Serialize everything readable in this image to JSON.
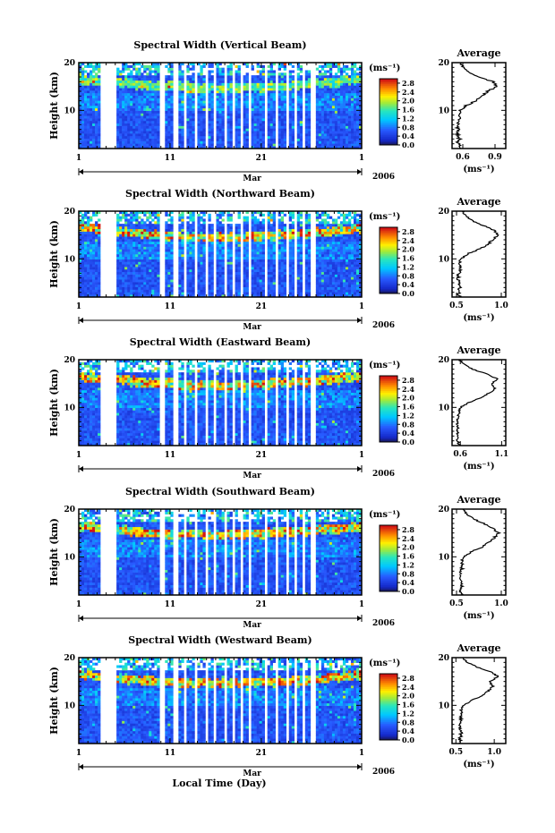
{
  "figure": {
    "xlabel": "Local Time (Day)"
  },
  "chart_data": [
    {
      "type": "heatmap",
      "title": "Spectral Width (Vertical Beam)",
      "ylabel": "Height (km)",
      "y_ticks": [
        "20",
        "10"
      ],
      "x_ticks": [
        "1",
        "11",
        "21",
        "1"
      ],
      "month_label": "Mar",
      "year_label": "2006",
      "ylim": [
        2,
        20
      ],
      "xlim": [
        1,
        32
      ],
      "colorbar": {
        "unit": "(ms⁻¹)",
        "labels": [
          "2.8",
          "2.4",
          "2.0",
          "1.6",
          "1.2",
          "0.8",
          "0.4",
          "0.0"
        ],
        "range": [
          0,
          3.0
        ]
      },
      "average": {
        "title": "Average",
        "xlabel": "(ms⁻¹)",
        "x_ticks": [
          "0.6",
          "0.9"
        ],
        "y_ticks": [
          "20",
          "10"
        ],
        "xlim": [
          0.5,
          1.0
        ],
        "ylim": [
          2,
          20
        ],
        "profile_heights": [
          2,
          3,
          4,
          5,
          6,
          7,
          8,
          9,
          10,
          11,
          12,
          13,
          14,
          15,
          16,
          17,
          18,
          19,
          20
        ],
        "profile_values": [
          0.58,
          0.56,
          0.57,
          0.55,
          0.56,
          0.56,
          0.57,
          0.56,
          0.58,
          0.63,
          0.72,
          0.78,
          0.83,
          0.92,
          0.88,
          0.74,
          0.66,
          0.61,
          0.58
        ]
      }
    },
    {
      "type": "heatmap",
      "title": "Spectral Width (Northward Beam)",
      "ylabel": "Height (km)",
      "y_ticks": [
        "20",
        "10"
      ],
      "x_ticks": [
        "1",
        "11",
        "21",
        "1"
      ],
      "month_label": "Mar",
      "year_label": "2006",
      "ylim": [
        2,
        20
      ],
      "xlim": [
        1,
        32
      ],
      "colorbar": {
        "unit": "(ms⁻¹)",
        "labels": [
          "2.8",
          "2.4",
          "2.0",
          "1.6",
          "1.2",
          "0.8",
          "0.4",
          "0.0"
        ],
        "range": [
          0,
          3.0
        ]
      },
      "average": {
        "title": "Average",
        "xlabel": "(ms⁻¹)",
        "x_ticks": [
          "0.5",
          "1.0"
        ],
        "y_ticks": [
          "20",
          "10"
        ],
        "xlim": [
          0.45,
          1.05
        ],
        "ylim": [
          2,
          20
        ],
        "profile_heights": [
          2,
          3,
          4,
          5,
          6,
          7,
          8,
          9,
          10,
          11,
          12,
          13,
          14,
          15,
          16,
          17,
          18,
          19,
          20
        ],
        "profile_values": [
          0.53,
          0.52,
          0.54,
          0.52,
          0.52,
          0.53,
          0.53,
          0.53,
          0.55,
          0.62,
          0.75,
          0.85,
          0.9,
          0.96,
          0.92,
          0.8,
          0.68,
          0.6,
          0.56
        ]
      }
    },
    {
      "type": "heatmap",
      "title": "Spectral Width (Eastward Beam)",
      "ylabel": "Height (km)",
      "y_ticks": [
        "20",
        "10"
      ],
      "x_ticks": [
        "1",
        "11",
        "21",
        "1"
      ],
      "month_label": "Mar",
      "year_label": "2006",
      "ylim": [
        2,
        20
      ],
      "xlim": [
        1,
        32
      ],
      "colorbar": {
        "unit": "(ms⁻¹)",
        "labels": [
          "2.8",
          "2.4",
          "2.0",
          "1.6",
          "1.2",
          "0.8",
          "0.4",
          "0.0"
        ],
        "range": [
          0,
          3.0
        ]
      },
      "average": {
        "title": "Average",
        "xlabel": "(ms⁻¹)",
        "x_ticks": [
          "0.6",
          "1.1"
        ],
        "y_ticks": [
          "20",
          "10"
        ],
        "xlim": [
          0.5,
          1.15
        ],
        "ylim": [
          2,
          20
        ],
        "profile_heights": [
          2,
          3,
          4,
          5,
          6,
          7,
          8,
          9,
          10,
          11,
          12,
          13,
          14,
          15,
          16,
          17,
          18,
          19,
          20
        ],
        "profile_values": [
          0.58,
          0.57,
          0.58,
          0.56,
          0.57,
          0.57,
          0.57,
          0.58,
          0.6,
          0.7,
          0.85,
          0.95,
          1.02,
          0.98,
          1.05,
          0.92,
          0.75,
          0.64,
          0.59
        ]
      }
    },
    {
      "type": "heatmap",
      "title": "Spectral Width (Southward Beam)",
      "ylabel": "Height (km)",
      "y_ticks": [
        "20",
        "10"
      ],
      "x_ticks": [
        "1",
        "11",
        "21",
        "1"
      ],
      "month_label": "Mar",
      "year_label": "2006",
      "ylim": [
        2,
        20
      ],
      "xlim": [
        1,
        32
      ],
      "colorbar": {
        "unit": "(ms⁻¹)",
        "labels": [
          "2.8",
          "2.4",
          "2.0",
          "1.6",
          "1.2",
          "0.8",
          "0.4",
          "0.0"
        ],
        "range": [
          0,
          3.0
        ]
      },
      "average": {
        "title": "Average",
        "xlabel": "(ms⁻¹)",
        "x_ticks": [
          "0.5",
          "1.0"
        ],
        "y_ticks": [
          "20",
          "10"
        ],
        "xlim": [
          0.45,
          1.05
        ],
        "ylim": [
          2,
          20
        ],
        "profile_heights": [
          2,
          3,
          4,
          5,
          6,
          7,
          8,
          9,
          10,
          11,
          12,
          13,
          14,
          15,
          16,
          17,
          18,
          19,
          20
        ],
        "profile_values": [
          0.55,
          0.54,
          0.56,
          0.54,
          0.55,
          0.55,
          0.56,
          0.56,
          0.58,
          0.66,
          0.78,
          0.86,
          0.92,
          0.97,
          0.9,
          0.8,
          0.68,
          0.61,
          0.57
        ]
      }
    },
    {
      "type": "heatmap",
      "title": "Spectral Width (Westward Beam)",
      "ylabel": "Height (km)",
      "y_ticks": [
        "20",
        "10"
      ],
      "x_ticks": [
        "1",
        "11",
        "21",
        "1"
      ],
      "month_label": "Mar",
      "year_label": "2006",
      "ylim": [
        2,
        20
      ],
      "xlim": [
        1,
        32
      ],
      "colorbar": {
        "unit": "(ms⁻¹)",
        "labels": [
          "2.8",
          "2.4",
          "2.0",
          "1.6",
          "1.2",
          "0.8",
          "0.4",
          "0.0"
        ],
        "range": [
          0,
          3.0
        ]
      },
      "average": {
        "title": "Average",
        "xlabel": "(ms⁻¹)",
        "x_ticks": [
          "0.5",
          "1.0"
        ],
        "y_ticks": [
          "20",
          "10"
        ],
        "xlim": [
          0.45,
          1.15
        ],
        "ylim": [
          2,
          20
        ],
        "profile_heights": [
          2,
          3,
          4,
          5,
          6,
          7,
          8,
          9,
          10,
          11,
          12,
          13,
          14,
          15,
          16,
          17,
          18,
          19,
          20
        ],
        "profile_values": [
          0.56,
          0.55,
          0.57,
          0.55,
          0.56,
          0.56,
          0.57,
          0.57,
          0.6,
          0.7,
          0.84,
          0.92,
          0.98,
          0.94,
          1.05,
          0.96,
          0.78,
          0.65,
          0.59
        ]
      }
    }
  ]
}
